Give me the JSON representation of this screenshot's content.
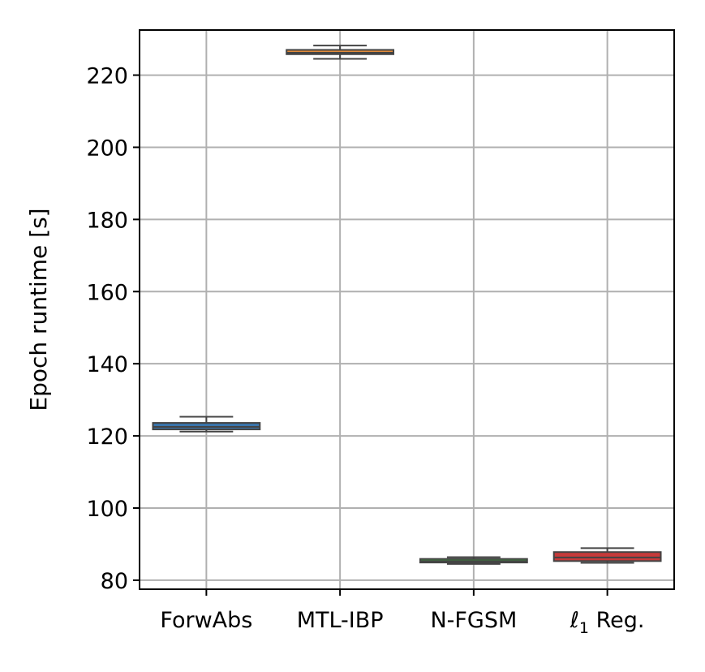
{
  "chart_data": {
    "type": "box",
    "title": "",
    "xlabel": "",
    "ylabel": "Epoch runtime [s]",
    "ylim": [
      77.5,
      232.5
    ],
    "yticks": [
      80,
      100,
      120,
      140,
      160,
      180,
      200,
      220
    ],
    "grid": true,
    "categories": [
      {
        "label": "ForwAbs",
        "label_main": "ForwAbs",
        "label_sub": "",
        "label_suffix": ""
      },
      {
        "label": "MTL-IBP",
        "label_main": "MTL-IBP",
        "label_sub": "",
        "label_suffix": ""
      },
      {
        "label": "N-FGSM",
        "label_main": "N-FGSM",
        "label_sub": "",
        "label_suffix": ""
      },
      {
        "label": "ℓ1 Reg.",
        "label_main": "ℓ",
        "label_sub": "1",
        "label_suffix": " Reg."
      }
    ],
    "boxes": [
      {
        "category": "ForwAbs",
        "color": "#3a75ad",
        "whisker_low": 121.2,
        "q1": 121.8,
        "median": 122.5,
        "q3": 123.6,
        "whisker_high": 125.3
      },
      {
        "category": "MTL-IBP",
        "color": "#e18a3a",
        "whisker_low": 224.5,
        "q1": 225.8,
        "median": 226.2,
        "q3": 227.0,
        "whisker_high": 228.2
      },
      {
        "category": "N-FGSM",
        "color": "#3f8f3f",
        "whisker_low": 84.5,
        "q1": 84.9,
        "median": 85.3,
        "q3": 85.9,
        "whisker_high": 86.4
      },
      {
        "category": "ℓ1 Reg.",
        "color": "#c73a3a",
        "whisker_low": 84.8,
        "q1": 85.3,
        "median": 86.3,
        "q3": 87.8,
        "whisker_high": 88.9
      }
    ],
    "edge_color": "#444444"
  }
}
